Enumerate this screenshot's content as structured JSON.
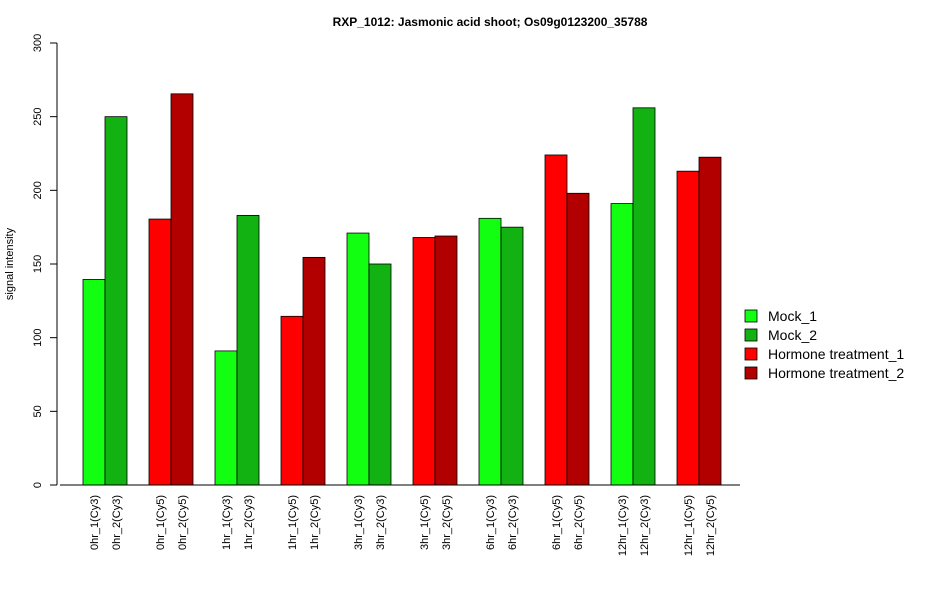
{
  "chart_data": {
    "type": "bar",
    "title": "RXP_1012: Jasmonic acid shoot; Os09g0123200_35788",
    "ylabel": "signal intensity",
    "xlabel": "",
    "ylim": [
      0,
      300
    ],
    "yticks": [
      "0",
      "50",
      "100",
      "150",
      "200",
      "250",
      "300"
    ],
    "groups": [
      {
        "bars": [
          {
            "label": "0hr_1(Cy3)",
            "value": 139.5,
            "series": 0
          },
          {
            "label": "0hr_2(Cy3)",
            "value": 250,
            "series": 1
          }
        ]
      },
      {
        "bars": [
          {
            "label": "0hr_1(Cy5)",
            "value": 180.5,
            "series": 2
          },
          {
            "label": "0hr_2(Cy5)",
            "value": 265.5,
            "series": 3
          }
        ]
      },
      {
        "bars": [
          {
            "label": "1hr_1(Cy3)",
            "value": 91,
            "series": 0
          },
          {
            "label": "1hr_2(Cy3)",
            "value": 183,
            "series": 1
          }
        ]
      },
      {
        "bars": [
          {
            "label": "1hr_1(Cy5)",
            "value": 114.5,
            "series": 2
          },
          {
            "label": "1hr_2(Cy5)",
            "value": 154.5,
            "series": 3
          }
        ]
      },
      {
        "bars": [
          {
            "label": "3hr_1(Cy3)",
            "value": 171,
            "series": 0
          },
          {
            "label": "3hr_2(Cy3)",
            "value": 150,
            "series": 1
          }
        ]
      },
      {
        "bars": [
          {
            "label": "3hr_1(Cy5)",
            "value": 168,
            "series": 2
          },
          {
            "label": "3hr_2(Cy5)",
            "value": 169,
            "series": 3
          }
        ]
      },
      {
        "bars": [
          {
            "label": "6hr_1(Cy3)",
            "value": 181,
            "series": 0
          },
          {
            "label": "6hr_2(Cy3)",
            "value": 175,
            "series": 1
          }
        ]
      },
      {
        "bars": [
          {
            "label": "6hr_1(Cy5)",
            "value": 224,
            "series": 2
          },
          {
            "label": "6hr_2(Cy5)",
            "value": 198,
            "series": 3
          }
        ]
      },
      {
        "bars": [
          {
            "label": "12hr_1(Cy3)",
            "value": 191,
            "series": 0
          },
          {
            "label": "12hr_2(Cy3)",
            "value": 256,
            "series": 1
          }
        ]
      },
      {
        "bars": [
          {
            "label": "12hr_1(Cy5)",
            "value": 213,
            "series": 2
          },
          {
            "label": "12hr_2(Cy5)",
            "value": 222.5,
            "series": 3
          }
        ]
      }
    ],
    "legend": {
      "position": "right",
      "entries": [
        {
          "name": "Mock_1",
          "color": "#12FF12"
        },
        {
          "name": "Mock_2",
          "color": "#12B212"
        },
        {
          "name": "Hormone treatment_1",
          "color": "#FF0000"
        },
        {
          "name": "Hormone treatment_2",
          "color": "#B20000"
        }
      ]
    },
    "grid": false
  }
}
